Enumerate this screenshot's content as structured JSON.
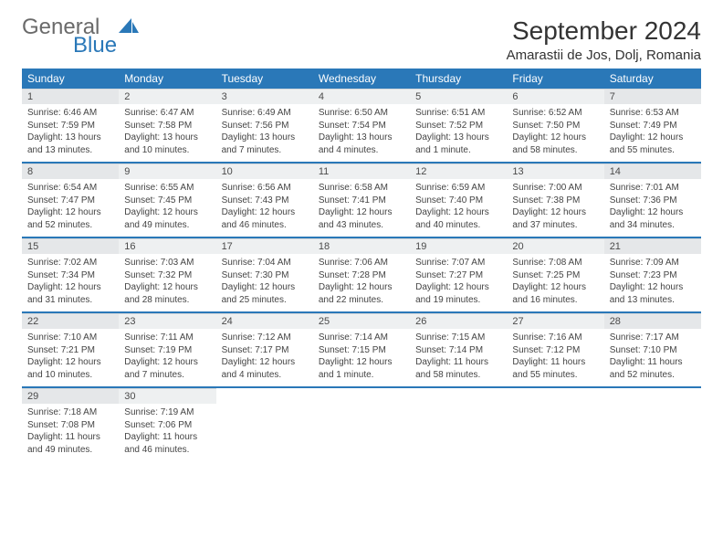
{
  "logo": {
    "text1": "General",
    "text2": "Blue",
    "icon_color": "#2a78b8"
  },
  "title": "September 2024",
  "subtitle": "Amarastii de Jos, Dolj, Romania",
  "colors": {
    "header_bg": "#2a78b8",
    "header_fg": "#ffffff",
    "daynum_bg": "#eef0f1",
    "sep": "#2a78b8"
  },
  "dow": [
    "Sunday",
    "Monday",
    "Tuesday",
    "Wednesday",
    "Thursday",
    "Friday",
    "Saturday"
  ],
  "weeks": [
    [
      {
        "n": "1",
        "sr": "6:46 AM",
        "ss": "7:59 PM",
        "dl": "13 hours and 13 minutes."
      },
      {
        "n": "2",
        "sr": "6:47 AM",
        "ss": "7:58 PM",
        "dl": "13 hours and 10 minutes."
      },
      {
        "n": "3",
        "sr": "6:49 AM",
        "ss": "7:56 PM",
        "dl": "13 hours and 7 minutes."
      },
      {
        "n": "4",
        "sr": "6:50 AM",
        "ss": "7:54 PM",
        "dl": "13 hours and 4 minutes."
      },
      {
        "n": "5",
        "sr": "6:51 AM",
        "ss": "7:52 PM",
        "dl": "13 hours and 1 minute."
      },
      {
        "n": "6",
        "sr": "6:52 AM",
        "ss": "7:50 PM",
        "dl": "12 hours and 58 minutes."
      },
      {
        "n": "7",
        "sr": "6:53 AM",
        "ss": "7:49 PM",
        "dl": "12 hours and 55 minutes."
      }
    ],
    [
      {
        "n": "8",
        "sr": "6:54 AM",
        "ss": "7:47 PM",
        "dl": "12 hours and 52 minutes."
      },
      {
        "n": "9",
        "sr": "6:55 AM",
        "ss": "7:45 PM",
        "dl": "12 hours and 49 minutes."
      },
      {
        "n": "10",
        "sr": "6:56 AM",
        "ss": "7:43 PM",
        "dl": "12 hours and 46 minutes."
      },
      {
        "n": "11",
        "sr": "6:58 AM",
        "ss": "7:41 PM",
        "dl": "12 hours and 43 minutes."
      },
      {
        "n": "12",
        "sr": "6:59 AM",
        "ss": "7:40 PM",
        "dl": "12 hours and 40 minutes."
      },
      {
        "n": "13",
        "sr": "7:00 AM",
        "ss": "7:38 PM",
        "dl": "12 hours and 37 minutes."
      },
      {
        "n": "14",
        "sr": "7:01 AM",
        "ss": "7:36 PM",
        "dl": "12 hours and 34 minutes."
      }
    ],
    [
      {
        "n": "15",
        "sr": "7:02 AM",
        "ss": "7:34 PM",
        "dl": "12 hours and 31 minutes."
      },
      {
        "n": "16",
        "sr": "7:03 AM",
        "ss": "7:32 PM",
        "dl": "12 hours and 28 minutes."
      },
      {
        "n": "17",
        "sr": "7:04 AM",
        "ss": "7:30 PM",
        "dl": "12 hours and 25 minutes."
      },
      {
        "n": "18",
        "sr": "7:06 AM",
        "ss": "7:28 PM",
        "dl": "12 hours and 22 minutes."
      },
      {
        "n": "19",
        "sr": "7:07 AM",
        "ss": "7:27 PM",
        "dl": "12 hours and 19 minutes."
      },
      {
        "n": "20",
        "sr": "7:08 AM",
        "ss": "7:25 PM",
        "dl": "12 hours and 16 minutes."
      },
      {
        "n": "21",
        "sr": "7:09 AM",
        "ss": "7:23 PM",
        "dl": "12 hours and 13 minutes."
      }
    ],
    [
      {
        "n": "22",
        "sr": "7:10 AM",
        "ss": "7:21 PM",
        "dl": "12 hours and 10 minutes."
      },
      {
        "n": "23",
        "sr": "7:11 AM",
        "ss": "7:19 PM",
        "dl": "12 hours and 7 minutes."
      },
      {
        "n": "24",
        "sr": "7:12 AM",
        "ss": "7:17 PM",
        "dl": "12 hours and 4 minutes."
      },
      {
        "n": "25",
        "sr": "7:14 AM",
        "ss": "7:15 PM",
        "dl": "12 hours and 1 minute."
      },
      {
        "n": "26",
        "sr": "7:15 AM",
        "ss": "7:14 PM",
        "dl": "11 hours and 58 minutes."
      },
      {
        "n": "27",
        "sr": "7:16 AM",
        "ss": "7:12 PM",
        "dl": "11 hours and 55 minutes."
      },
      {
        "n": "28",
        "sr": "7:17 AM",
        "ss": "7:10 PM",
        "dl": "11 hours and 52 minutes."
      }
    ],
    [
      {
        "n": "29",
        "sr": "7:18 AM",
        "ss": "7:08 PM",
        "dl": "11 hours and 49 minutes."
      },
      {
        "n": "30",
        "sr": "7:19 AM",
        "ss": "7:06 PM",
        "dl": "11 hours and 46 minutes."
      },
      null,
      null,
      null,
      null,
      null
    ]
  ],
  "labels": {
    "sunrise": "Sunrise:",
    "sunset": "Sunset:",
    "daylight": "Daylight:"
  }
}
